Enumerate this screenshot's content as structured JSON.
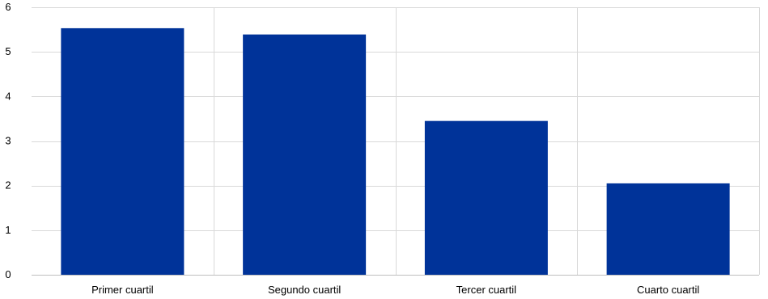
{
  "chart_data": {
    "type": "bar",
    "title": "",
    "xlabel": "",
    "ylabel": "",
    "categories": [
      "Primer cuartil",
      "Segundo cuartil",
      "Tercer cuartil",
      "Cuarto cuartil"
    ],
    "values": [
      5.53,
      5.39,
      3.45,
      2.05
    ],
    "ylim": [
      0,
      6
    ],
    "yticks": [
      "0",
      "1",
      "2",
      "3",
      "4",
      "5",
      "6"
    ],
    "grid": true,
    "colors": {
      "bar": "#003399",
      "grid": "#d9d9d9"
    }
  }
}
